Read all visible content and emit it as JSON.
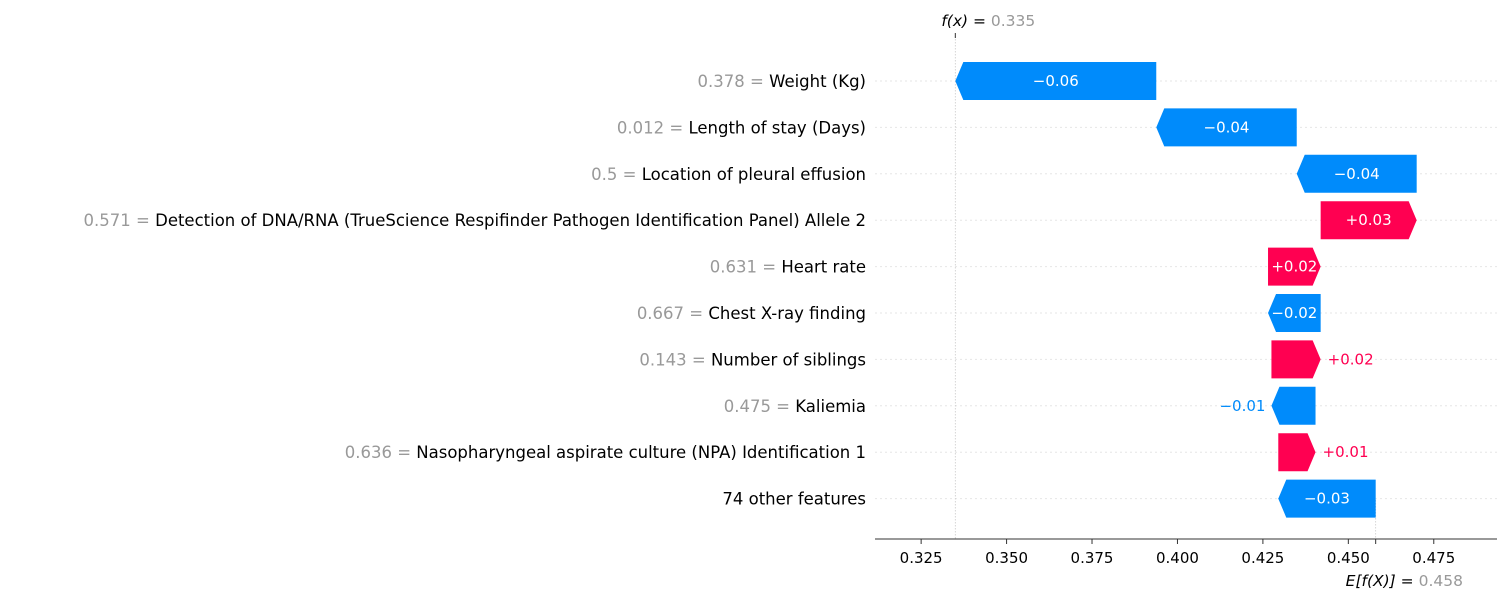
{
  "chart_data": {
    "type": "waterfall",
    "f_x": {
      "label": "f(x) = ",
      "value": "0.335"
    },
    "expected": {
      "label": "E[f(X)] = ",
      "value": "0.458"
    },
    "base_value": 0.458,
    "output_value": 0.335,
    "xlim": [
      0.3115,
      0.4935
    ],
    "xticks": [
      {
        "value": 0.325,
        "label": "0.325"
      },
      {
        "value": 0.35,
        "label": "0.350"
      },
      {
        "value": 0.375,
        "label": "0.375"
      },
      {
        "value": 0.4,
        "label": "0.400"
      },
      {
        "value": 0.425,
        "label": "0.425"
      },
      {
        "value": 0.45,
        "label": "0.450"
      },
      {
        "value": 0.475,
        "label": "0.475"
      }
    ],
    "features": [
      {
        "value_text": "0.378",
        "name": "Weight (Kg)",
        "start": 0.3938,
        "end": 0.335,
        "label": "−0.06"
      },
      {
        "value_text": "0.012",
        "name": "Length of stay (Days)",
        "start": 0.4349,
        "end": 0.3938,
        "label": "−0.04"
      },
      {
        "value_text": "0.5",
        "name": "Location of pleural effusion",
        "start": 0.47,
        "end": 0.4349,
        "label": "−0.04"
      },
      {
        "value_text": "0.571",
        "name": "Detection of DNA/RNA (TrueScience Respifinder Pathogen Identification Panel) Allele 2",
        "start": 0.4419,
        "end": 0.47,
        "label": "+0.03"
      },
      {
        "value_text": "0.631",
        "name": "Heart rate",
        "start": 0.4265,
        "end": 0.4419,
        "label": "+0.02"
      },
      {
        "value_text": "0.667",
        "name": "Chest X-ray finding",
        "start": 0.4419,
        "end": 0.4265,
        "label": "−0.02"
      },
      {
        "value_text": "0.143",
        "name": "Number of siblings",
        "start": 0.4275,
        "end": 0.4419,
        "label": "+0.02"
      },
      {
        "value_text": "0.475",
        "name": "Kaliemia",
        "start": 0.4404,
        "end": 0.4275,
        "label": "−0.01"
      },
      {
        "value_text": "0.636",
        "name": "Nasopharyngeal aspirate culture (NPA) Identification 1",
        "start": 0.4295,
        "end": 0.4404,
        "label": "+0.01"
      },
      {
        "value_text": "",
        "name": "74 other features",
        "start": 0.458,
        "end": 0.4295,
        "label": "−0.03"
      }
    ],
    "colors": {
      "positive": "#ff0051",
      "negative": "#008bfb",
      "axis": "#333333",
      "guide": "#cccccc"
    },
    "grid": "dotted row guides"
  }
}
